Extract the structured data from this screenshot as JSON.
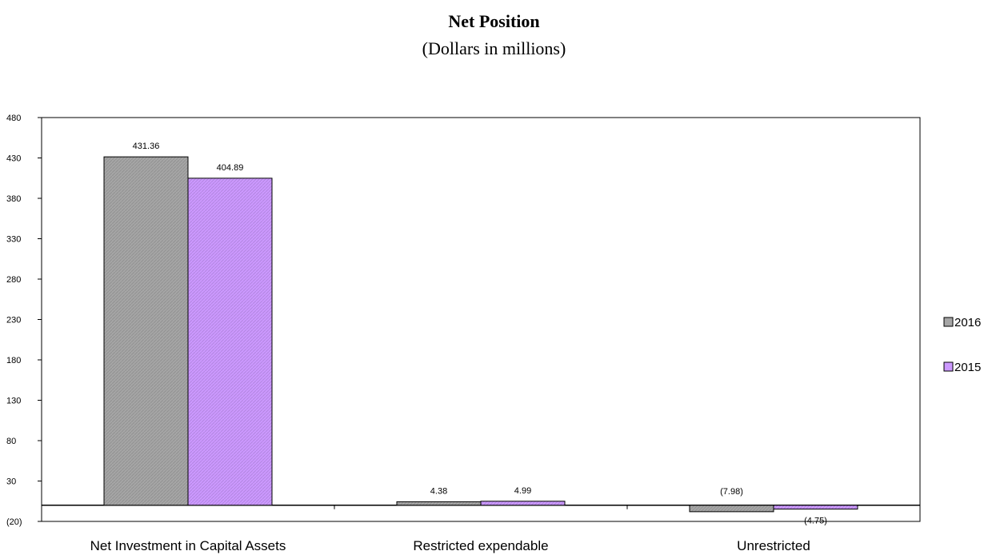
{
  "chart_data": {
    "type": "bar",
    "title": "Net Position",
    "subtitle": "(Dollars in millions)",
    "categories": [
      "Net Investment in Capital Assets",
      "Restricted expendable",
      "Unrestricted"
    ],
    "series": [
      {
        "name": "2016",
        "values": [
          431.36,
          4.38,
          -7.98
        ],
        "labels": [
          "431.36",
          "4.38",
          "(7.98)"
        ],
        "color": "#a6a6a6"
      },
      {
        "name": "2015",
        "values": [
          404.89,
          4.99,
          -4.75
        ],
        "labels": [
          "404.89",
          "4.99",
          "(4.75)"
        ],
        "color": "#cc99ff"
      }
    ],
    "ylim": [
      -20,
      480
    ],
    "yticks": [
      -20,
      30,
      80,
      130,
      180,
      230,
      280,
      330,
      380,
      430,
      480
    ],
    "ytick_labels": [
      "(20)",
      "30",
      "80",
      "130",
      "180",
      "230",
      "280",
      "330",
      "380",
      "430",
      "480"
    ],
    "legend_position": "right",
    "grid": false
  }
}
